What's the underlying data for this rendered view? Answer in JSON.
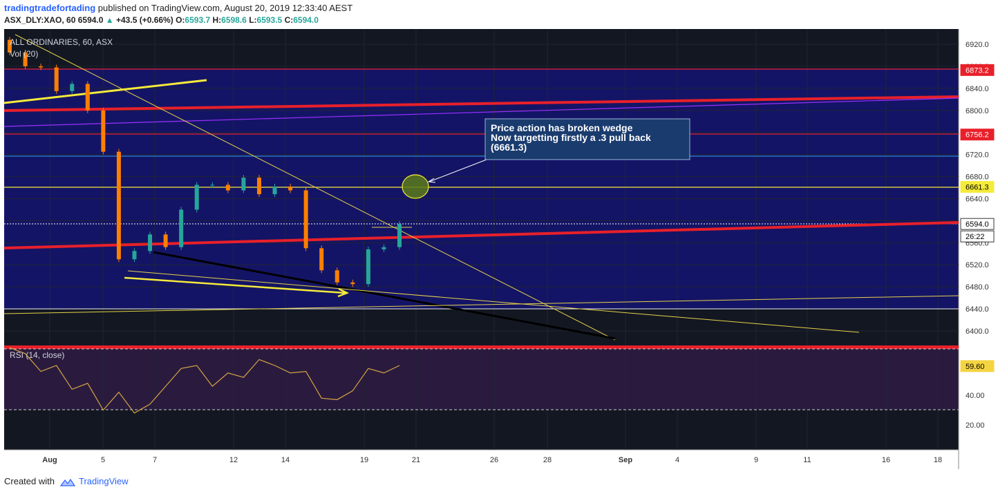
{
  "header": {
    "author": "tradingtradefortading",
    "published": "published on TradingView.com, August 20, 2019 12:33:40 AEST",
    "symbol": "ASX_DLY:XAO, 60",
    "last": "6594.0",
    "change": "+43.5 (+0.66%)",
    "o_label": "O:",
    "o": "6593.7",
    "h_label": "H:",
    "h": "6598.6",
    "l_label": "L:",
    "l": "6593.5",
    "c_label": "C:",
    "c": "6594.0"
  },
  "footer": {
    "created_with": "Created with",
    "brand": "TradingView"
  },
  "colors": {
    "bg": "#131722",
    "band": "#141466",
    "candle_up": "#26a69a",
    "candle_down": "#ff7f00",
    "red": "#e8202a",
    "yellow": "#f5eb3a",
    "rsi": "#d6a542"
  },
  "chart_data": {
    "type": "line",
    "title": "ALL ORDINARIES, 60, ASX",
    "volume_label": "Vol (20)",
    "price_axis_ticks": [
      "6920.0",
      "6880.0",
      "6840.0",
      "6800.0",
      "6760.0",
      "6720.0",
      "6680.0",
      "6640.0",
      "6600.0",
      "6560.0",
      "6520.0",
      "6480.0",
      "6440.0",
      "6400.0"
    ],
    "price_tags": [
      {
        "label": "6873.2",
        "style": "red"
      },
      {
        "label": "6756.2",
        "style": "red"
      },
      {
        "label": "6661.3",
        "style": "yellow"
      },
      {
        "label": "6594.0",
        "style": "white"
      }
    ],
    "countdown": "26:22",
    "x_ticks": [
      "Aug",
      "5",
      "7",
      "12",
      "14",
      "19",
      "21",
      "26",
      "28",
      "Sep",
      "4",
      "9",
      "11",
      "16",
      "18"
    ],
    "ylim": [
      6380,
      6940
    ],
    "close_series": [
      {
        "date": "Aug 1",
        "close": 6905
      },
      {
        "date": "Aug 2",
        "close": 6880
      },
      {
        "date": "Aug 3",
        "close": 6878
      },
      {
        "date": "Aug 4",
        "close": 6835
      },
      {
        "date": "Aug 5",
        "close": 6848
      },
      {
        "date": "Aug 5",
        "close": 6800
      },
      {
        "date": "Aug 6",
        "close": 6725
      },
      {
        "date": "Aug 6",
        "close": 6530
      },
      {
        "date": "Aug 7",
        "close": 6545
      },
      {
        "date": "Aug 8",
        "close": 6575
      },
      {
        "date": "Aug 8",
        "close": 6552
      },
      {
        "date": "Aug 9",
        "close": 6620
      },
      {
        "date": "Aug 10",
        "close": 6665
      },
      {
        "date": "Aug 12",
        "close": 6665
      },
      {
        "date": "Aug 13",
        "close": 6655
      },
      {
        "date": "Aug 14",
        "close": 6678
      },
      {
        "date": "Aug 14",
        "close": 6648
      },
      {
        "date": "Aug 15",
        "close": 6662
      },
      {
        "date": "Aug 15",
        "close": 6655
      },
      {
        "date": "Aug 16",
        "close": 6550
      },
      {
        "date": "Aug 17",
        "close": 6510
      },
      {
        "date": "Aug 18",
        "close": 6488
      },
      {
        "date": "Aug 18",
        "close": 6485
      },
      {
        "date": "Aug 19",
        "close": 6548
      },
      {
        "date": "Aug 19",
        "close": 6552
      },
      {
        "date": "Aug 20",
        "close": 6594
      }
    ],
    "annotation": {
      "lines": [
        "Price action has broken wedge",
        "Now targetting firstly a .3 pull back",
        "(6661.3)"
      ]
    },
    "rsi": {
      "label": "RSI (14, close)",
      "ticks": [
        "40.00",
        "20.00"
      ],
      "current": "59.60",
      "series": [
        72,
        68,
        56,
        60,
        44,
        48,
        30,
        42,
        28,
        34,
        46,
        58,
        60,
        46,
        55,
        52,
        64,
        60,
        55,
        56,
        38,
        37,
        43,
        58,
        55,
        60
      ]
    }
  }
}
